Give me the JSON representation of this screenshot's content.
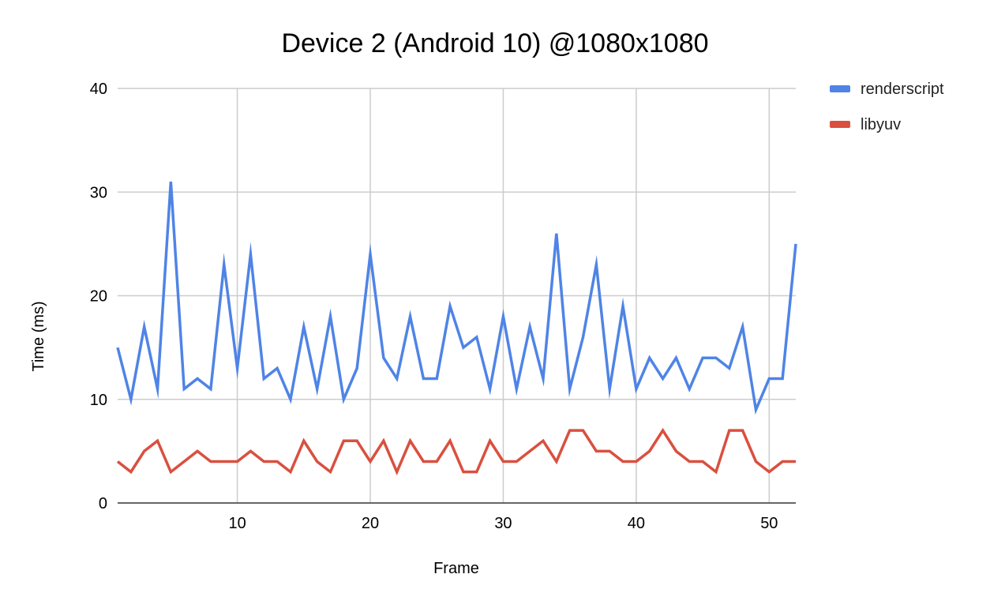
{
  "chart_data": {
    "type": "line",
    "title": "Device 2 (Android 10) @1080x1080",
    "xlabel": "Frame",
    "ylabel": "Time (ms)",
    "xlim": [
      1,
      52
    ],
    "ylim": [
      0,
      40
    ],
    "x_ticks": [
      10,
      20,
      30,
      40,
      50
    ],
    "y_ticks": [
      0,
      10,
      20,
      30,
      40
    ],
    "grid": true,
    "legend_position": "top-right",
    "x": [
      1,
      2,
      3,
      4,
      5,
      6,
      7,
      8,
      9,
      10,
      11,
      12,
      13,
      14,
      15,
      16,
      17,
      18,
      19,
      20,
      21,
      22,
      23,
      24,
      25,
      26,
      27,
      28,
      29,
      30,
      31,
      32,
      33,
      34,
      35,
      36,
      37,
      38,
      39,
      40,
      41,
      42,
      43,
      44,
      45,
      46,
      47,
      48,
      49,
      50,
      51,
      52
    ],
    "series": [
      {
        "name": "renderscript",
        "color": "#4f84e6",
        "values": [
          15,
          10,
          17,
          11,
          31,
          11,
          12,
          11,
          23,
          13,
          24,
          12,
          13,
          10,
          17,
          11,
          18,
          10,
          13,
          24,
          14,
          12,
          18,
          12,
          12,
          19,
          15,
          16,
          11,
          18,
          11,
          17,
          12,
          26,
          11,
          16,
          23,
          11,
          19,
          11,
          14,
          12,
          14,
          11,
          14,
          14,
          13,
          17,
          9,
          12,
          12,
          25
        ]
      },
      {
        "name": "libyuv",
        "color": "#d9503f",
        "values": [
          4,
          3,
          5,
          6,
          3,
          4,
          5,
          4,
          4,
          4,
          5,
          4,
          4,
          3,
          6,
          4,
          3,
          6,
          6,
          4,
          6,
          3,
          6,
          4,
          4,
          6,
          3,
          3,
          6,
          4,
          4,
          5,
          6,
          4,
          7,
          7,
          5,
          5,
          4,
          4,
          5,
          7,
          5,
          4,
          4,
          3,
          7,
          7,
          4,
          3,
          4,
          4
        ]
      }
    ]
  }
}
